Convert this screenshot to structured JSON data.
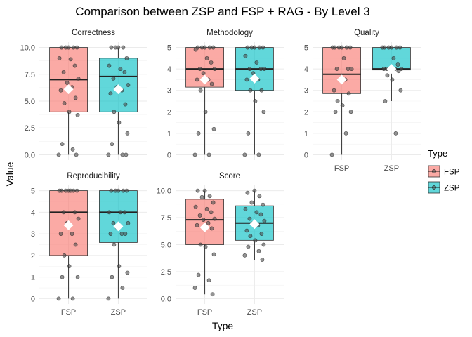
{
  "chart_data": {
    "type": "boxplot",
    "title": "Comparison between ZSP and FSP + RAG - By Level 3",
    "xlabel": "Type",
    "ylabel": "Value",
    "categories": [
      "FSP",
      "ZSP"
    ],
    "colors": {
      "FSP": "#F8766D",
      "ZSP": "#00BFC4"
    },
    "legend": {
      "title": "Type",
      "position": "right",
      "entries": [
        "FSP",
        "ZSP"
      ]
    },
    "grid": true,
    "panels": [
      {
        "name": "Correctness",
        "ylim": [
          0,
          10
        ],
        "yticks": [
          0,
          2.5,
          5,
          7.5,
          10
        ],
        "tick_labels": [
          "0.0",
          "2.5",
          "5.0",
          "7.5",
          "10.0"
        ],
        "show_x_labels": false,
        "boxes": {
          "FSP": {
            "min": 0,
            "q1": 4,
            "median": 7,
            "q3": 10,
            "max": 10,
            "mean": 6.1
          },
          "ZSP": {
            "min": 0,
            "q1": 4,
            "median": 7.3,
            "q3": 9,
            "max": 10,
            "mean": 6.1
          }
        },
        "points": {
          "FSP": [
            10,
            10,
            10,
            10,
            10,
            9,
            8.9,
            8.3,
            7.7,
            7.1,
            6.7,
            6.3,
            6,
            5.3,
            4.8,
            4,
            3.7,
            1,
            0.5,
            0,
            0
          ],
          "ZSP": [
            10,
            10,
            10,
            10,
            9,
            8.3,
            8,
            7.7,
            7.1,
            6.5,
            6.3,
            6,
            5.7,
            4.7,
            4,
            3,
            2,
            1,
            0,
            0,
            0
          ]
        }
      },
      {
        "name": "Methodology",
        "ylim": [
          0,
          5
        ],
        "yticks": [
          0,
          1,
          2,
          3,
          4,
          5
        ],
        "tick_labels": [
          "0",
          "1",
          "2",
          "3",
          "4",
          "5"
        ],
        "show_x_labels": false,
        "boxes": {
          "FSP": {
            "min": 0,
            "q1": 3.15,
            "median": 4,
            "q3": 5,
            "max": 5,
            "mean": 3.5
          },
          "ZSP": {
            "min": 0,
            "q1": 3,
            "median": 4,
            "q3": 5,
            "max": 5,
            "mean": 3.55
          }
        },
        "points": {
          "FSP": [
            5,
            5,
            5,
            5,
            5,
            4.9,
            4.5,
            4.3,
            4,
            4,
            3.8,
            3.5,
            3.5,
            3.3,
            3,
            2,
            1.2,
            1,
            0,
            0
          ],
          "ZSP": [
            5,
            5,
            5,
            5,
            5,
            4.6,
            4.3,
            4,
            4,
            4,
            3.8,
            3.5,
            3.5,
            3,
            3,
            2.5,
            2,
            1,
            0,
            0
          ]
        }
      },
      {
        "name": "Quality",
        "ylim": [
          0,
          5
        ],
        "yticks": [
          0,
          1,
          2,
          3,
          4,
          5
        ],
        "tick_labels": [
          "0",
          "1",
          "2",
          "3",
          "4",
          "5"
        ],
        "show_x_labels": true,
        "boxes": {
          "FSP": {
            "min": 0,
            "q1": 2.85,
            "median": 3.75,
            "q3": 5,
            "max": 5,
            "mean": 3.5
          },
          "ZSP": {
            "min": 2.5,
            "q1": 3.95,
            "median": 4,
            "q3": 5,
            "max": 5,
            "mean": 4
          }
        },
        "points": {
          "FSP": [
            5,
            5,
            5,
            5,
            5,
            5,
            4.5,
            4,
            4,
            4,
            3.5,
            3.5,
            3,
            2.85,
            2.5,
            2.3,
            2,
            2,
            1,
            0
          ],
          "ZSP": [
            5,
            5,
            5,
            5,
            5,
            5,
            4.5,
            4.2,
            4,
            4,
            4,
            4,
            4,
            3.9,
            3.7,
            3.5,
            3,
            2.5,
            1
          ]
        }
      },
      {
        "name": "Reproducibility",
        "ylim": [
          0,
          5
        ],
        "yticks": [
          0,
          1,
          2,
          3,
          4,
          5
        ],
        "tick_labels": [
          "0",
          "1",
          "2",
          "3",
          "4",
          "5"
        ],
        "show_x_labels": true,
        "boxes": {
          "FSP": {
            "min": 0,
            "q1": 2,
            "median": 4,
            "q3": 5,
            "max": 5,
            "mean": 3.4
          },
          "ZSP": {
            "min": 0,
            "q1": 2.6,
            "median": 4,
            "q3": 5,
            "max": 5,
            "mean": 3.35
          }
        },
        "points": {
          "FSP": [
            5,
            5,
            5,
            5,
            5,
            5,
            5,
            4,
            4,
            3.7,
            3.5,
            3,
            3,
            2.5,
            2,
            1.5,
            1,
            1,
            0,
            0
          ],
          "ZSP": [
            5,
            5,
            5,
            5,
            5,
            4,
            4,
            4,
            3.5,
            3.5,
            3.3,
            3,
            3,
            3,
            2.5,
            1.5,
            1.2,
            1,
            0.5,
            0
          ]
        }
      },
      {
        "name": "Score",
        "ylim": [
          0,
          10
        ],
        "yticks": [
          0,
          2.5,
          5,
          7.5,
          10
        ],
        "tick_labels": [
          "0.0",
          "2.5",
          "5.0",
          "7.5",
          "10.0"
        ],
        "show_x_labels": true,
        "boxes": {
          "FSP": {
            "min": 0.4,
            "q1": 5,
            "median": 7.3,
            "q3": 9.2,
            "max": 10,
            "mean": 6.6
          },
          "ZSP": {
            "min": 3.6,
            "q1": 5.4,
            "median": 7,
            "q3": 8.6,
            "max": 10,
            "mean": 6.9
          }
        },
        "points": {
          "FSP": [
            10,
            10,
            9.5,
            9.4,
            8.9,
            8.5,
            8.3,
            8,
            7.7,
            7.4,
            7.3,
            7,
            6.8,
            6.5,
            5,
            4.8,
            4.1,
            2.2,
            1.7,
            1,
            0.4
          ],
          "ZSP": [
            10,
            9.8,
            9.5,
            8.9,
            8.7,
            8.3,
            8,
            7.8,
            7.4,
            7.2,
            7,
            6.8,
            6.3,
            6,
            5.8,
            5.4,
            5,
            4.8,
            4.4,
            4,
            3.6
          ]
        }
      }
    ]
  }
}
